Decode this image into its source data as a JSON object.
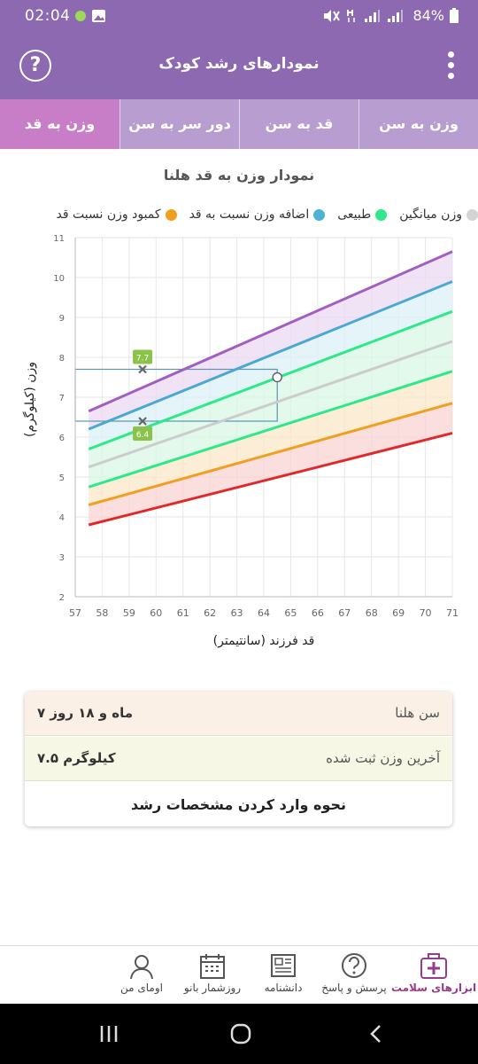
{
  "status_bar": {
    "time": "02:04",
    "battery": "84%"
  },
  "app_bar": {
    "title": "نمودارهای رشد کودک",
    "help_symbol": "?"
  },
  "tabs": [
    {
      "label": "وزن به سن",
      "active": false
    },
    {
      "label": "قد به سن",
      "active": false
    },
    {
      "label": "دور سر به سن",
      "active": false
    },
    {
      "label": "وزن به قد",
      "active": true
    }
  ],
  "chart_title": "نمودار وزن به قد هلنا",
  "legend": [
    {
      "label": "وزن میانگین",
      "color": "#d4d4d4"
    },
    {
      "label": "طبیعی",
      "color": "#2ee88a"
    },
    {
      "label": "اضافه وزن نسبت به قد",
      "color": "#4ab3d6"
    },
    {
      "label": "کمبود وزن نسبت قد",
      "color": "#f0a020"
    }
  ],
  "chart_data": {
    "type": "line",
    "xlabel": "قد فرزند (سانتیمتر)",
    "ylabel": "وزن (کیلوگرم)",
    "xlim": [
      57,
      71
    ],
    "ylim": [
      2,
      11
    ],
    "x_ticks": [
      57,
      58,
      59,
      60,
      61,
      62,
      63,
      64,
      65,
      66,
      67,
      68,
      69,
      70,
      71
    ],
    "y_ticks": [
      2,
      3,
      4,
      5,
      6,
      7,
      8,
      9,
      10,
      11
    ],
    "grid": true,
    "series": [
      {
        "color": "#a25fc0",
        "x": [
          57.5,
          71
        ],
        "y": [
          6.65,
          10.65
        ]
      },
      {
        "color": "#4aa8d2",
        "x": [
          57.5,
          71
        ],
        "y": [
          6.2,
          9.9
        ]
      },
      {
        "color": "#2ee88a",
        "x": [
          57.5,
          71
        ],
        "y": [
          5.7,
          9.15
        ]
      },
      {
        "color": "#cccccc",
        "x": [
          57.5,
          71
        ],
        "y": [
          5.25,
          8.4
        ]
      },
      {
        "color": "#2ee88a",
        "x": [
          57.5,
          71
        ],
        "y": [
          4.75,
          7.65
        ]
      },
      {
        "color": "#f0a020",
        "x": [
          57.5,
          71
        ],
        "y": [
          4.3,
          6.85
        ]
      },
      {
        "color": "#e02828",
        "x": [
          57.5,
          71
        ],
        "y": [
          3.8,
          6.1
        ]
      }
    ],
    "points": [
      {
        "x": 59.5,
        "y": 7.7,
        "label": "7.7"
      },
      {
        "x": 59.5,
        "y": 6.4,
        "label": "6.4"
      }
    ],
    "current": {
      "x": 64.5,
      "y": 7.5
    },
    "range_box": {
      "x0": 57,
      "x1": 64.5,
      "y0": 6.4,
      "y1": 7.7
    }
  },
  "info": {
    "age_label": "سن هلنا",
    "age_value": "۷ ماه و ۱۸ روز",
    "weight_label": "آخرین وزن ثبت شده",
    "weight_value": "۷.۵ کیلوگرم",
    "howto": "نحوه وارد کردن مشخصات رشد"
  },
  "bottom_nav": [
    {
      "label": "ابزارهای سلامت",
      "icon": "first-aid-kit-icon",
      "active": true
    },
    {
      "label": "پرسش و پاسخ",
      "icon": "question-bubble-icon",
      "active": false
    },
    {
      "label": "دانشنامه",
      "icon": "newspaper-icon",
      "active": false
    },
    {
      "label": "روزشمار بانو",
      "icon": "calendar-icon",
      "active": false
    },
    {
      "label": "اومای من",
      "icon": "user-icon",
      "active": false
    }
  ]
}
